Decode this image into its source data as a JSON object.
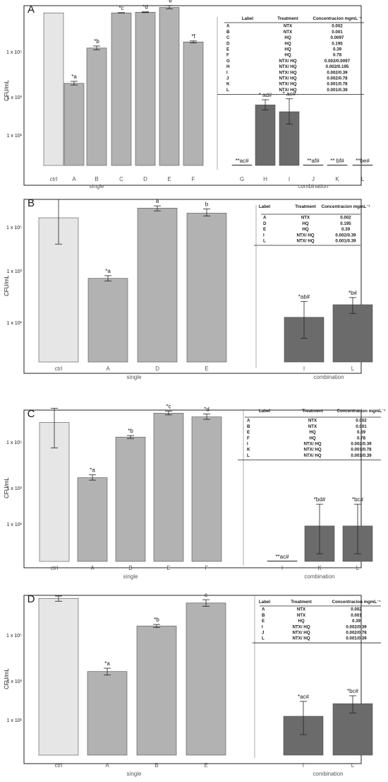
{
  "chart_data": [
    {
      "type": "bar",
      "panel": "A",
      "ylabel": "CFU/mL",
      "ytick_labels": [
        "1 x 10¹",
        "1 x 10³",
        "1 x 10⁵"
      ],
      "groups": [
        {
          "label": "single"
        },
        {
          "label": "combination"
        }
      ],
      "categories": [
        "ctrl",
        "A",
        "B",
        "C",
        "D",
        "E",
        "F",
        "G",
        "H",
        "I",
        "J",
        "K",
        "L"
      ],
      "values": [
        800000,
        1500,
        35000,
        800000,
        850000,
        1300000,
        60000,
        1,
        220,
        120,
        1,
        1,
        1
      ],
      "err": [
        [
          800000,
          800000
        ],
        [
          1300,
          1800
        ],
        [
          30000,
          42000
        ],
        [
          790000,
          820000
        ],
        [
          820000,
          880000
        ],
        [
          1150000,
          1550000
        ],
        [
          55000,
          66000
        ],
        [
          1,
          1
        ],
        [
          140,
          350
        ],
        [
          40,
          380
        ],
        [
          1,
          1
        ],
        [
          1,
          1
        ],
        [
          1,
          1
        ]
      ],
      "annotations": [
        "",
        "*a",
        "*b",
        "*c",
        "*d",
        "*e",
        "*f",
        "**ac#",
        "* ad#",
        "* ae#",
        "**af#",
        "** bf#",
        "**be#"
      ],
      "table": {
        "headers": [
          "Label",
          "Treatment",
          "Concentracion mgmL⁻¹"
        ],
        "rows": [
          [
            "A",
            "NTX",
            "0.002"
          ],
          [
            "B",
            "NTX",
            "0.001"
          ],
          [
            "C",
            "HQ",
            "0.0097"
          ],
          [
            "D",
            "HQ",
            "0.195"
          ],
          [
            "E",
            "HQ",
            "0.39"
          ],
          [
            "F",
            "HQ",
            "0.78"
          ],
          [
            "G",
            "NTX/ HQ",
            "0.002/0.0097"
          ],
          [
            "H",
            "NTX/ HQ",
            "0.002/0.195"
          ],
          [
            "I",
            "NTX/ HQ",
            "0.002/0.39"
          ],
          [
            "J",
            "NTX/ HQ",
            "0.002/0.78"
          ],
          [
            "K",
            "NTX/ HQ",
            "0.001/0.78"
          ],
          [
            "L",
            "NTX/ HQ",
            "0.001/0.39"
          ]
        ]
      }
    },
    {
      "type": "bar",
      "panel": "B",
      "ylabel": "CFU/mL",
      "ytick_labels": [
        "1 x 10¹",
        "1 x 10³",
        "1 x 10⁵"
      ],
      "groups": [
        {
          "label": "single"
        },
        {
          "label": "combination"
        }
      ],
      "categories": [
        "ctrl",
        "A",
        "D",
        "E",
        "I",
        "L"
      ],
      "values": [
        300000,
        1500,
        700000,
        450000,
        50,
        150
      ],
      "err": [
        [
          30000,
          1500000
        ],
        [
          1200,
          1900
        ],
        [
          550000,
          850000
        ],
        [
          350000,
          650000
        ],
        [
          8,
          200
        ],
        [
          70,
          280
        ]
      ],
      "annotations": [
        "",
        "*a",
        "a",
        "b",
        "*ab#",
        "*b#"
      ],
      "table": {
        "headers": [
          "Label",
          "Treatment",
          "Concentracion mgmL⁻¹"
        ],
        "rows": [
          [
            "A",
            "NTX",
            "0.002"
          ],
          [
            "D",
            "HQ",
            "0.195"
          ],
          [
            "E",
            "HQ",
            "0.39"
          ],
          [
            "I",
            "NTX/ HQ",
            "0.002/0.39"
          ],
          [
            "L",
            "NTX/ HQ",
            "0.001/0.39"
          ]
        ]
      }
    },
    {
      "type": "bar",
      "panel": "C",
      "ylabel": "CFU/mL",
      "ytick_labels": [
        "1 x 10¹",
        "1 x 10³",
        "1 x 10⁵"
      ],
      "groups": [
        {
          "label": "single"
        },
        {
          "label": "combination"
        }
      ],
      "categories": [
        "ctrl",
        "A",
        "B",
        "E",
        "F",
        "I",
        "K",
        "L"
      ],
      "values": [
        300000,
        2000,
        80000,
        700000,
        500000,
        1,
        25,
        25
      ],
      "err": [
        [
          30000,
          1100000
        ],
        [
          1600,
          2600
        ],
        [
          70000,
          92000
        ],
        [
          600000,
          850000
        ],
        [
          400000,
          650000
        ],
        [
          1,
          1
        ],
        [
          2,
          180
        ],
        [
          2,
          180
        ]
      ],
      "annotations": [
        "",
        "*a",
        "*b",
        "*c",
        "*d",
        "**ac#",
        "*bd#",
        "*bc#"
      ],
      "table": {
        "headers": [
          "Label",
          "Treatment",
          "Concentracion mgmL⁻¹"
        ],
        "rows": [
          [
            "A",
            "NTX",
            "0.002"
          ],
          [
            "B",
            "NTX",
            "0.001"
          ],
          [
            "E",
            "HQ",
            "0.39"
          ],
          [
            "F",
            "HQ",
            "0.78"
          ],
          [
            "I",
            "NTX/ HQ",
            "0.002/0.39"
          ],
          [
            "K",
            "NTX/ HQ",
            "0.001/0.78"
          ],
          [
            "L",
            "NTX/ HQ",
            "0.001/0.39"
          ]
        ]
      }
    },
    {
      "type": "bar",
      "panel": "D",
      "ylabel": "CFU/mL",
      "ytick_labels": [
        "1 x 10¹",
        "1 x 10³",
        "1 x 10⁵"
      ],
      "groups": [
        {
          "label": "single"
        },
        {
          "label": "combination"
        }
      ],
      "categories": [
        "ctrl",
        "A",
        "B",
        "E",
        "I",
        "L"
      ],
      "values": [
        900000,
        1500,
        80000,
        600000,
        30,
        90
      ],
      "err": [
        [
          700000,
          1100000
        ],
        [
          1100,
          2000
        ],
        [
          70000,
          92000
        ],
        [
          450000,
          800000
        ],
        [
          6,
          110
        ],
        [
          40,
          180
        ]
      ],
      "annotations": [
        "",
        "*a",
        "*b",
        "c",
        "*ac#",
        "*bc#"
      ],
      "table": {
        "headers": [
          "Label",
          "Treatment",
          "Concentracion mgmL⁻¹"
        ],
        "rows": [
          [
            "A",
            "NTX",
            "0.002"
          ],
          [
            "B",
            "NTX",
            "0.001"
          ],
          [
            "E",
            "HQ",
            "0.39"
          ],
          [
            "I",
            "NTX/ HQ",
            "0.002/0.39"
          ],
          [
            "J",
            "NTX/ HQ",
            "0.002/0.78"
          ],
          [
            "L",
            "NTX/ HQ",
            "0.001/0.39"
          ]
        ]
      }
    }
  ],
  "colors": {
    "ctrl": "#e6e6e6",
    "single": "#b2b2b2",
    "combination": "#6b6b6b",
    "outline": "#4d4d4d",
    "text": "#1a1a1a",
    "axis_text": "#555555"
  }
}
